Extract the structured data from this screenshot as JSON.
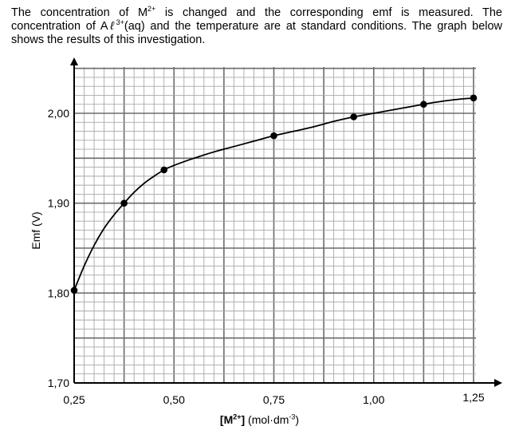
{
  "intro": {
    "s1a": "The concentration of M",
    "s1sup": "2+",
    "s1b": " is changed and the corresponding emf is measured. The concentration of A",
    "ell": "ℓ",
    "s2sup": "3+",
    "s2b": "(aq) and the temperature are at standard conditions. The graph below shows the results of this investigation."
  },
  "chart_data": {
    "type": "line",
    "xlabel": {
      "bracket_open": "[M",
      "sup": "2+",
      "bracket_close": "]",
      "unit_a": " (mol·dm",
      "unit_sup": "-3",
      "unit_b": ")"
    },
    "ylabel": "Emf (V)",
    "xlim": [
      0.25,
      1.25
    ],
    "ylim": [
      1.7,
      2.05
    ],
    "x_ticks": [
      0.25,
      0.5,
      0.75,
      1.0,
      1.25
    ],
    "x_tick_labels": [
      "0,25",
      "0,50",
      "0,75",
      "1,00",
      "1,25"
    ],
    "y_ticks": [
      1.7,
      1.8,
      1.9,
      2.0
    ],
    "y_tick_labels": [
      "1,70",
      "1,80",
      "1,90",
      "2,00"
    ],
    "grid": true,
    "series": [
      {
        "points": [
          [
            0.25,
            1.803
          ],
          [
            0.375,
            1.9
          ],
          [
            0.475,
            1.937
          ],
          [
            0.75,
            1.975
          ],
          [
            0.95,
            1.996
          ],
          [
            1.125,
            2.01
          ],
          [
            1.25,
            2.017
          ]
        ],
        "curve": [
          [
            0.25,
            1.803
          ],
          [
            0.275,
            1.83
          ],
          [
            0.3,
            1.853
          ],
          [
            0.325,
            1.872
          ],
          [
            0.35,
            1.887
          ],
          [
            0.375,
            1.9
          ],
          [
            0.4,
            1.912
          ],
          [
            0.425,
            1.922
          ],
          [
            0.45,
            1.93
          ],
          [
            0.475,
            1.937
          ],
          [
            0.5,
            1.942
          ],
          [
            0.55,
            1.95
          ],
          [
            0.6,
            1.957
          ],
          [
            0.65,
            1.963
          ],
          [
            0.7,
            1.969
          ],
          [
            0.75,
            1.975
          ],
          [
            0.8,
            1.98
          ],
          [
            0.85,
            1.985
          ],
          [
            0.9,
            1.991
          ],
          [
            0.95,
            1.996
          ],
          [
            1.0,
            2.0
          ],
          [
            1.05,
            2.004
          ],
          [
            1.1,
            2.008
          ],
          [
            1.125,
            2.01
          ],
          [
            1.15,
            2.012
          ],
          [
            1.2,
            2.015
          ],
          [
            1.25,
            2.017
          ]
        ],
        "color": "#000000"
      }
    ]
  }
}
